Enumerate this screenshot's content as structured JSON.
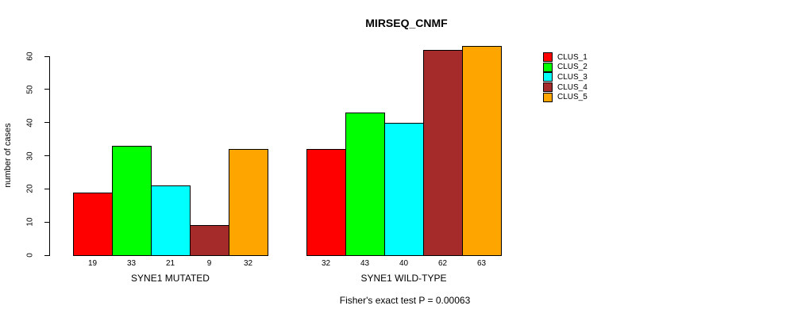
{
  "chart_data": {
    "type": "bar",
    "title": "MIRSEQ_CNMF",
    "ylabel": "number of cases",
    "xlabel": "",
    "ylim": [
      0,
      60
    ],
    "yticks": [
      0,
      10,
      20,
      30,
      40,
      50,
      60
    ],
    "grid": false,
    "legend_position": "right",
    "categories": [
      "SYNE1 MUTATED",
      "SYNE1 WILD-TYPE"
    ],
    "series": [
      {
        "name": "CLUS_1",
        "color": "#FF0000",
        "values": [
          19,
          32
        ]
      },
      {
        "name": "CLUS_2",
        "color": "#00FF00",
        "values": [
          33,
          43
        ]
      },
      {
        "name": "CLUS_3",
        "color": "#00FFFF",
        "values": [
          21,
          40
        ]
      },
      {
        "name": "CLUS_4",
        "color": "#A52A2A",
        "values": [
          9,
          62
        ]
      },
      {
        "name": "CLUS_5",
        "color": "#FFA500",
        "values": [
          32,
          63
        ]
      }
    ],
    "bar_value_labels": [
      [
        19,
        33,
        21,
        9,
        32
      ],
      [
        32,
        43,
        40,
        62,
        63
      ]
    ],
    "annotation": "Fisher's exact test P = 0.00063"
  }
}
